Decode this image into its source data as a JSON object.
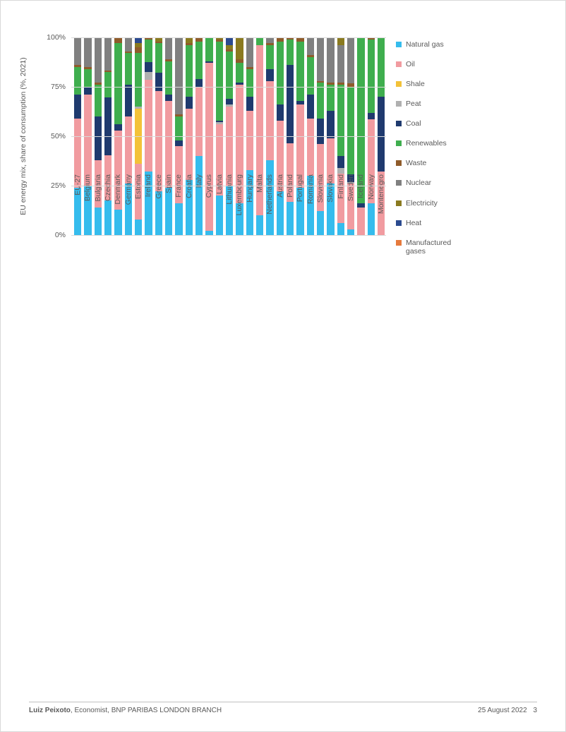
{
  "chart": {
    "type": "stacked-bar-100",
    "y_axis_title": "EU energy mix, share of consumption (%, 2021)",
    "title_fontsize": 10.5,
    "label_fontsize": 10.5,
    "background_color": "#ffffff",
    "grid_color": "#d9d9d9",
    "text_color": "#595959",
    "ylim": [
      0,
      100
    ],
    "ytick_step": 25,
    "ytick_labels": [
      "0%",
      "25%",
      "50%",
      "75%",
      "100%"
    ],
    "bar_width": 0.72,
    "series": [
      {
        "key": "natural_gas",
        "label": "Natural gas",
        "color": "#35bced"
      },
      {
        "key": "oil",
        "label": "Oil",
        "color": "#f19ba0"
      },
      {
        "key": "shale",
        "label": "Shale",
        "color": "#f3c238"
      },
      {
        "key": "peat",
        "label": "Peat",
        "color": "#b0b0b0"
      },
      {
        "key": "coal",
        "label": "Coal",
        "color": "#1f3a6e"
      },
      {
        "key": "renewables",
        "label": "Renewables",
        "color": "#3fae4e"
      },
      {
        "key": "waste",
        "label": "Waste",
        "color": "#8f5b2a"
      },
      {
        "key": "nuclear",
        "label": "Nuclear",
        "color": "#808080"
      },
      {
        "key": "electricity",
        "label": "Electricity",
        "color": "#8a7a1f"
      },
      {
        "key": "heat",
        "label": "Heat",
        "color": "#2b4a8f"
      },
      {
        "key": "manufactured_gases",
        "label": "Manufactured\ngases",
        "color": "#e67a3c"
      }
    ],
    "categories": [
      "EU-27",
      "Belgium",
      "Bulgaria",
      "Czechia",
      "Denmark",
      "Germany",
      "Estonia",
      "Ireland",
      "Greece",
      "Spain",
      "France",
      "Croatia",
      "Italy",
      "Cyprus",
      "Latvia",
      "Lithuania",
      "Luxembourg",
      "Hungary",
      "Malta",
      "Netherlands",
      "Austria",
      "Poland",
      "Portugal",
      "Romania",
      "Slovenia",
      "Slovakia",
      "Finland",
      "Sweden",
      "Iceland",
      "Norway",
      "Montenegro"
    ],
    "data": [
      {
        "natural_gas": 24,
        "oil": 35,
        "shale": 0,
        "peat": 0,
        "coal": 12,
        "renewables": 14,
        "waste": 1,
        "nuclear": 14,
        "electricity": 0,
        "heat": 0,
        "manufactured_gases": 0
      },
      {
        "natural_gas": 25,
        "oil": 46,
        "shale": 0,
        "peat": 0,
        "coal": 4,
        "renewables": 9,
        "waste": 1,
        "nuclear": 15,
        "electricity": 0,
        "heat": 0,
        "manufactured_gases": 0
      },
      {
        "natural_gas": 14,
        "oil": 24,
        "shale": 0,
        "peat": 0,
        "coal": 22,
        "renewables": 16,
        "waste": 1,
        "nuclear": 23,
        "electricity": 0,
        "heat": 0,
        "manufactured_gases": 0
      },
      {
        "natural_gas": 18,
        "oil": 23,
        "shale": 0,
        "peat": 0,
        "coal": 30,
        "renewables": 13,
        "waste": 1,
        "nuclear": 17,
        "electricity": 0,
        "heat": 0,
        "manufactured_gases": 0
      },
      {
        "natural_gas": 13,
        "oil": 40,
        "shale": 0,
        "peat": 0,
        "coal": 3,
        "renewables": 41,
        "waste": 3,
        "nuclear": 0,
        "electricity": 0,
        "heat": 0,
        "manufactured_gases": 0
      },
      {
        "natural_gas": 26,
        "oil": 34,
        "shale": 0,
        "peat": 0,
        "coal": 16,
        "renewables": 16,
        "waste": 1,
        "nuclear": 7,
        "electricity": 0,
        "heat": 0,
        "manufactured_gases": 0
      },
      {
        "natural_gas": 8,
        "oil": 28,
        "shale": 28,
        "peat": 1,
        "coal": 0,
        "renewables": 27,
        "waste": 3,
        "nuclear": 0,
        "electricity": 2,
        "heat": 3,
        "manufactured_gases": 0
      },
      {
        "natural_gas": 33,
        "oil": 48,
        "shale": 0,
        "peat": 4,
        "coal": 5,
        "renewables": 12,
        "waste": 1,
        "nuclear": 0,
        "electricity": 0,
        "heat": 0,
        "manufactured_gases": 0
      },
      {
        "natural_gas": 22,
        "oil": 51,
        "shale": 0,
        "peat": 0,
        "coal": 9,
        "renewables": 15,
        "waste": 1,
        "nuclear": 0,
        "electricity": 2,
        "heat": 0,
        "manufactured_gases": 0
      },
      {
        "natural_gas": 24,
        "oil": 44,
        "shale": 0,
        "peat": 0,
        "coal": 3,
        "renewables": 17,
        "waste": 1,
        "nuclear": 11,
        "electricity": 0,
        "heat": 0,
        "manufactured_gases": 0
      },
      {
        "natural_gas": 16,
        "oil": 29,
        "shale": 0,
        "peat": 0,
        "coal": 3,
        "renewables": 12,
        "waste": 1,
        "nuclear": 39,
        "electricity": 0,
        "heat": 0,
        "manufactured_gases": 0
      },
      {
        "natural_gas": 28,
        "oil": 36,
        "shale": 0,
        "peat": 0,
        "coal": 6,
        "renewables": 26,
        "waste": 1,
        "nuclear": 0,
        "electricity": 3,
        "heat": 0,
        "manufactured_gases": 0
      },
      {
        "natural_gas": 40,
        "oil": 35,
        "shale": 0,
        "peat": 0,
        "coal": 4,
        "renewables": 19,
        "waste": 2,
        "nuclear": 0,
        "electricity": 0,
        "heat": 0,
        "manufactured_gases": 0
      },
      {
        "natural_gas": 2,
        "oil": 85,
        "shale": 0,
        "peat": 0,
        "coal": 1,
        "renewables": 12,
        "waste": 0,
        "nuclear": 0,
        "electricity": 0,
        "heat": 0,
        "manufactured_gases": 0
      },
      {
        "natural_gas": 20,
        "oil": 36,
        "shale": 0,
        "peat": 1,
        "coal": 1,
        "renewables": 40,
        "waste": 1,
        "nuclear": 0,
        "electricity": 1,
        "heat": 0,
        "manufactured_gases": 0
      },
      {
        "natural_gas": 25,
        "oil": 40,
        "shale": 0,
        "peat": 1,
        "coal": 3,
        "renewables": 24,
        "waste": 1,
        "nuclear": 0,
        "electricity": 2,
        "heat": 4,
        "manufactured_gases": 0
      },
      {
        "natural_gas": 16,
        "oil": 60,
        "shale": 0,
        "peat": 0,
        "coal": 1,
        "renewables": 10,
        "waste": 2,
        "nuclear": 0,
        "electricity": 11,
        "heat": 0,
        "manufactured_gases": 0
      },
      {
        "natural_gas": 33,
        "oil": 30,
        "shale": 0,
        "peat": 0,
        "coal": 7,
        "renewables": 14,
        "waste": 1,
        "nuclear": 15,
        "electricity": 0,
        "heat": 0,
        "manufactured_gases": 0
      },
      {
        "natural_gas": 10,
        "oil": 86,
        "shale": 0,
        "peat": 0,
        "coal": 0,
        "renewables": 4,
        "waste": 0,
        "nuclear": 0,
        "electricity": 0,
        "heat": 0,
        "manufactured_gases": 0
      },
      {
        "natural_gas": 38,
        "oil": 40,
        "shale": 0,
        "peat": 0,
        "coal": 6,
        "renewables": 12,
        "waste": 1,
        "nuclear": 3,
        "electricity": 0,
        "heat": 0,
        "manufactured_gases": 0
      },
      {
        "natural_gas": 22,
        "oil": 36,
        "shale": 0,
        "peat": 0,
        "coal": 8,
        "renewables": 32,
        "waste": 2,
        "nuclear": 0,
        "electricity": 0,
        "heat": 0,
        "manufactured_gases": 0
      },
      {
        "natural_gas": 17,
        "oil": 30,
        "shale": 0,
        "peat": 0,
        "coal": 40,
        "renewables": 13,
        "waste": 1,
        "nuclear": 0,
        "electricity": 0,
        "heat": 0,
        "manufactured_gases": 0
      },
      {
        "natural_gas": 24,
        "oil": 42,
        "shale": 0,
        "peat": 0,
        "coal": 2,
        "renewables": 30,
        "waste": 2,
        "nuclear": 0,
        "electricity": 0,
        "heat": 0,
        "manufactured_gases": 0
      },
      {
        "natural_gas": 30,
        "oil": 29,
        "shale": 0,
        "peat": 0,
        "coal": 12,
        "renewables": 19,
        "waste": 1,
        "nuclear": 9,
        "electricity": 0,
        "heat": 0,
        "manufactured_gases": 0
      },
      {
        "natural_gas": 12,
        "oil": 34,
        "shale": 0,
        "peat": 0,
        "coal": 13,
        "renewables": 18,
        "waste": 1,
        "nuclear": 22,
        "electricity": 0,
        "heat": 0,
        "manufactured_gases": 0
      },
      {
        "natural_gas": 26,
        "oil": 23,
        "shale": 0,
        "peat": 0,
        "coal": 14,
        "renewables": 13,
        "waste": 1,
        "nuclear": 23,
        "electricity": 0,
        "heat": 0,
        "manufactured_gases": 0
      },
      {
        "natural_gas": 6,
        "oil": 25,
        "shale": 0,
        "peat": 3,
        "coal": 6,
        "renewables": 36,
        "waste": 1,
        "nuclear": 19,
        "electricity": 4,
        "heat": 0,
        "manufactured_gases": 0
      },
      {
        "natural_gas": 3,
        "oil": 24,
        "shale": 0,
        "peat": 1,
        "coal": 4,
        "renewables": 46,
        "waste": 2,
        "nuclear": 24,
        "electricity": 0,
        "heat": 0,
        "manufactured_gases": 0
      },
      {
        "natural_gas": 0,
        "oil": 14,
        "shale": 0,
        "peat": 0,
        "coal": 2,
        "renewables": 84,
        "waste": 0,
        "nuclear": 0,
        "electricity": 0,
        "heat": 0,
        "manufactured_gases": 0
      },
      {
        "natural_gas": 15,
        "oil": 40,
        "shale": 0,
        "peat": 0,
        "coal": 3,
        "renewables": 35,
        "waste": 1,
        "nuclear": 0,
        "electricity": 0,
        "heat": 0,
        "manufactured_gases": 0
      },
      {
        "natural_gas": 0,
        "oil": 32,
        "shale": 0,
        "peat": 0,
        "coal": 38,
        "renewables": 30,
        "waste": 0,
        "nuclear": 0,
        "electricity": 0,
        "heat": 0,
        "manufactured_gases": 0
      }
    ]
  },
  "footer": {
    "author_name": "Luiz Peixoto",
    "author_title": ", Economist, BNP PARIBAS LONDON BRANCH",
    "date": "25 August 2022",
    "page": "3"
  }
}
